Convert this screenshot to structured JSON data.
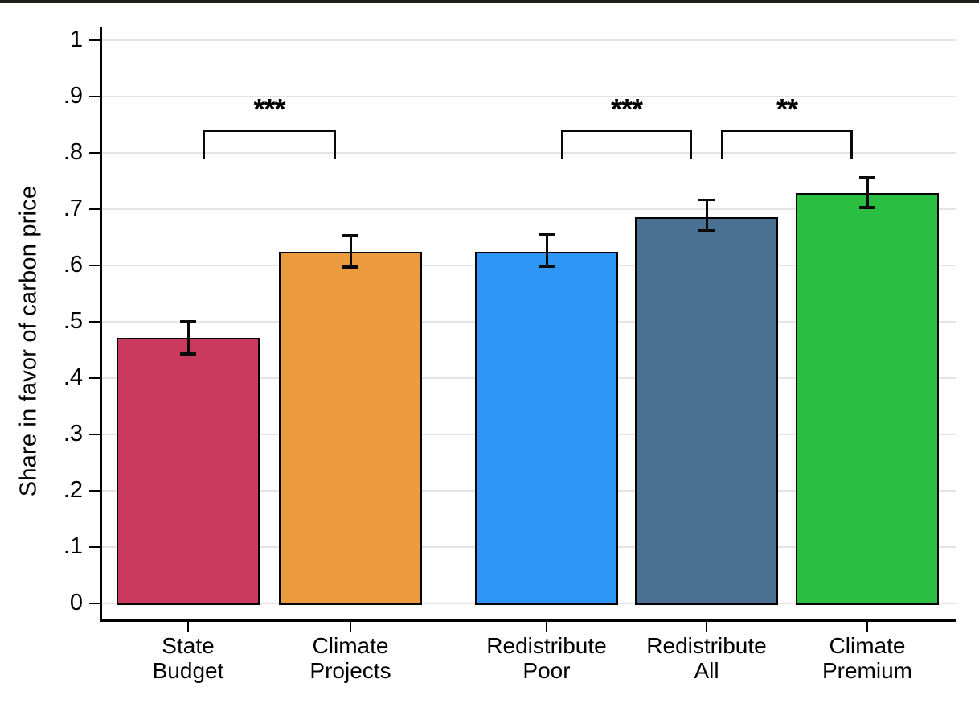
{
  "figure": {
    "top_border_color": "#1e1e1b",
    "background_color": "#ffffff"
  },
  "chart_data": {
    "type": "bar",
    "title": "",
    "xlabel": "",
    "ylabel": "Share in favor of carbon price",
    "ylim": [
      0,
      1
    ],
    "grid": true,
    "grid_color": "#e4e4e4",
    "ytick_values": [
      0,
      0.1,
      0.2,
      0.3,
      0.4,
      0.5,
      0.6,
      0.7,
      0.8,
      0.9,
      1
    ],
    "ytick_labels": [
      "0",
      ".1",
      ".2",
      ".3",
      ".4",
      ".5",
      ".6",
      ".7",
      ".8",
      ".9",
      "1"
    ],
    "categories": [
      "State Budget",
      "Climate Projects",
      "Redistribute Poor",
      "Redistribute All",
      "Climate Premium"
    ],
    "category_label_lines": [
      [
        "State",
        "Budget"
      ],
      [
        "Climate",
        "Projects"
      ],
      [
        "Redistribute",
        "Poor"
      ],
      [
        "Redistribute",
        "All"
      ],
      [
        "Climate",
        "Premium"
      ]
    ],
    "values": [
      0.471,
      0.625,
      0.625,
      0.686,
      0.729
    ],
    "ci_low": [
      0.443,
      0.597,
      0.598,
      0.661,
      0.703
    ],
    "ci_high": [
      0.502,
      0.655,
      0.656,
      0.717,
      0.757
    ],
    "bar_colors": [
      "#c93a5e",
      "#ec9a3e",
      "#2e97f5",
      "#4a7191",
      "#2abf40"
    ],
    "bar_edge_color": "#000000",
    "error_bar_color": "#0a0a0a",
    "legend": null,
    "significance_brackets": [
      {
        "between": [
          "State Budget",
          "Climate Projects"
        ],
        "label": "***"
      },
      {
        "between": [
          "Redistribute Poor",
          "Redistribute All"
        ],
        "label": "***"
      },
      {
        "between": [
          "Redistribute All",
          "Climate Premium"
        ],
        "label": "**"
      }
    ]
  }
}
